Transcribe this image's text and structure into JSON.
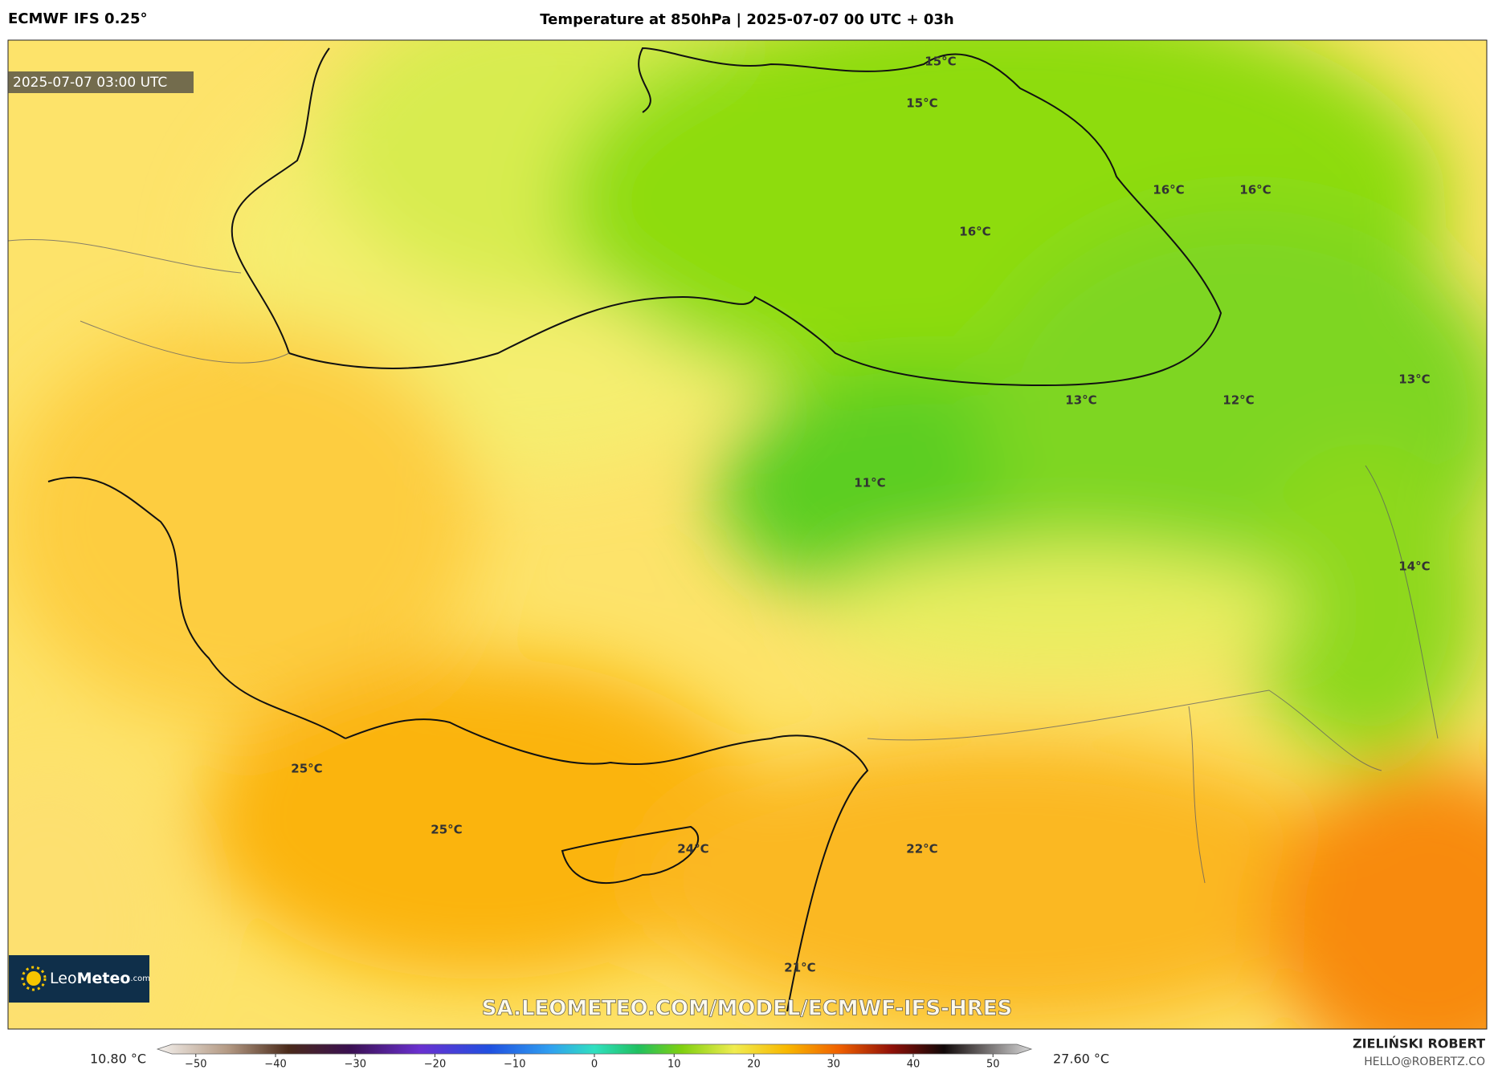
{
  "header": {
    "model": "ECMWF IFS 0.25°",
    "title": "Temperature at 850hPa | 2025-07-07 00 UTC + 03h"
  },
  "map": {
    "valid_time": "2025-07-07 03:00 UTC",
    "labels": [
      "15°C",
      "15°C",
      "16°C",
      "16°C",
      "16°C",
      "13°C",
      "12°C",
      "13°C",
      "11°C",
      "14°C",
      "25°C",
      "25°C",
      "24°C",
      "22°C",
      "21°C"
    ],
    "watermark": "SA.LEOMETEO.COM/MODEL/ECMWF-IFS-HRES",
    "logo": {
      "leo": "Leo",
      "meteo": "Meteo",
      "suffix": ".com"
    }
  },
  "colorbar": {
    "lim": [
      -53,
      53
    ],
    "ticks": [
      {
        "value": -50,
        "label": "−50"
      },
      {
        "value": -40,
        "label": "−40"
      },
      {
        "value": -30,
        "label": "−30"
      },
      {
        "value": -20,
        "label": "−20"
      },
      {
        "value": -10,
        "label": "−10"
      },
      0,
      10,
      20,
      30,
      40,
      50
    ],
    "min_label": "10.80 °C",
    "max_label": "27.60 °C"
  },
  "credit": {
    "author": "ZIELIŃSKI ROBERT",
    "email": "HELLO@ROBERTZ.CO"
  }
}
